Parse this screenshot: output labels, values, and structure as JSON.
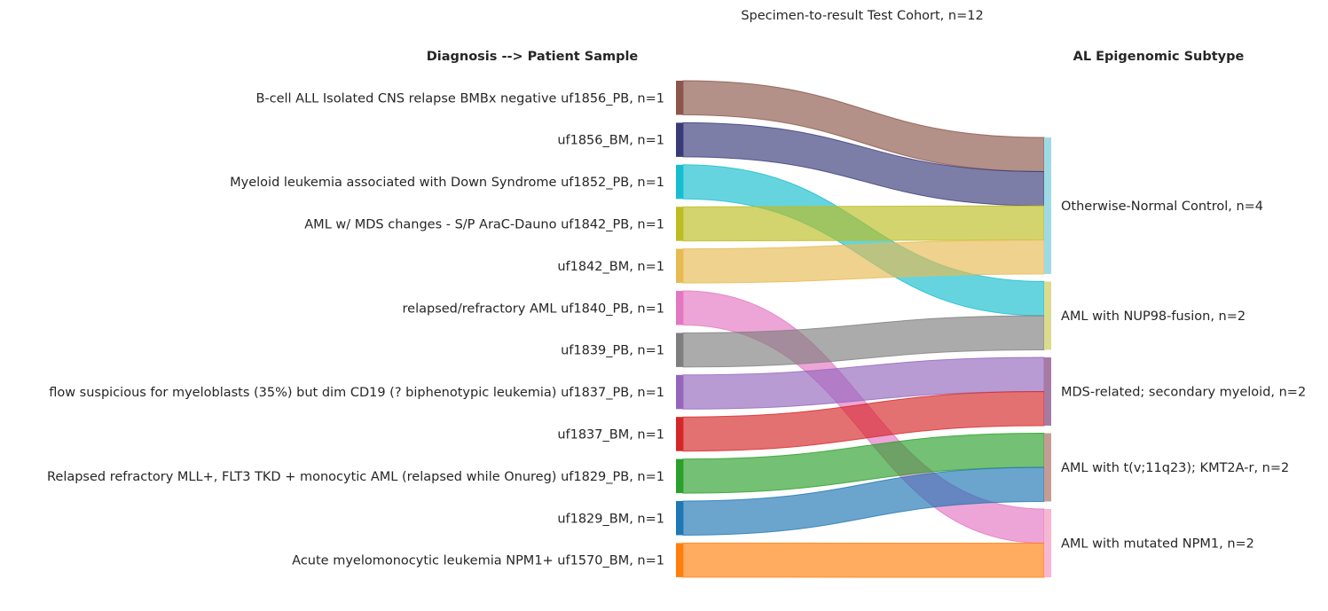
{
  "title": "Specimen-to-result Test Cohort, n=12",
  "left_header": "Diagnosis --> Patient Sample",
  "right_header": "AL Epigenomic Subtype",
  "sources": [
    {
      "label": "B-cell ALL Isolated CNS relapse BMBx negative  uf1856_PB, n=1",
      "color": "#8c564b",
      "target": 0
    },
    {
      "label": "uf1856_BM, n=1",
      "color": "#393b79",
      "target": 0
    },
    {
      "label": "Myeloid leukemia associated with Down Syndrome  uf1852_PB, n=1",
      "color": "#17becf",
      "target": 1
    },
    {
      "label": "AML w/ MDS changes - S/P AraC-Dauno  uf1842_PB, n=1",
      "color": "#bcbd22",
      "target": 0
    },
    {
      "label": "uf1842_BM, n=1",
      "color": "#e7ba52",
      "target": 0
    },
    {
      "label": "relapsed/refractory AML  uf1840_PB, n=1",
      "color": "#e377c2",
      "target": 4
    },
    {
      "label": "uf1839_PB, n=1",
      "color": "#7f7f7f",
      "target": 1
    },
    {
      "label": "flow suspicious for myeloblasts (35%) but dim CD19 (? biphenotypic leukemia)  uf1837_PB, n=1",
      "color": "#9467bd",
      "target": 2
    },
    {
      "label": "uf1837_BM, n=1",
      "color": "#d62728",
      "target": 2
    },
    {
      "label": "Relapsed refractory MLL+, FLT3 TKD + monocytic AML (relapsed while Onureg)  uf1829_PB, n=1",
      "color": "#2ca02c",
      "target": 3
    },
    {
      "label": "uf1829_BM, n=1",
      "color": "#1f77b4",
      "target": 3
    },
    {
      "label": "Acute myelomonocytic leukemia NPM1+  uf1570_BM, n=1",
      "color": "#ff7f0e",
      "target": 4
    }
  ],
  "targets": [
    {
      "label": "Otherwise-Normal Control, n=4",
      "color": "#9edae5",
      "count": 4
    },
    {
      "label": "AML with NUP98-fusion, n=2",
      "color": "#dbdb8d",
      "count": 2
    },
    {
      "label": "MDS-related; secondary myeloid, n=2",
      "color": "#a77aa4",
      "count": 2
    },
    {
      "label": "AML with t(v;11q23); KMT2A-r, n=2",
      "color": "#c49c94",
      "count": 2
    },
    {
      "label": "AML with mutated NPM1, n=2",
      "color": "#f7b6d2",
      "count": 2
    }
  ],
  "flows": [
    {
      "source": 0,
      "target": 0,
      "value": 1
    },
    {
      "source": 1,
      "target": 0,
      "value": 1
    },
    {
      "source": 2,
      "target": 1,
      "value": 1
    },
    {
      "source": 3,
      "target": 0,
      "value": 1
    },
    {
      "source": 4,
      "target": 0,
      "value": 1
    },
    {
      "source": 5,
      "target": 4,
      "value": 1
    },
    {
      "source": 6,
      "target": 1,
      "value": 1
    },
    {
      "source": 7,
      "target": 2,
      "value": 1
    },
    {
      "source": 8,
      "target": 2,
      "value": 1
    },
    {
      "source": 9,
      "target": 3,
      "value": 1
    },
    {
      "source": 10,
      "target": 3,
      "value": 1
    },
    {
      "source": 11,
      "target": 4,
      "value": 1
    }
  ]
}
